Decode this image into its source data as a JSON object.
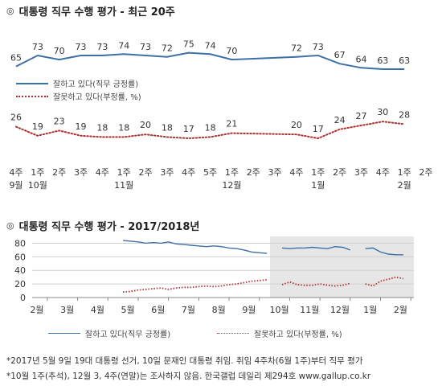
{
  "header1": {
    "icon": "target-icon",
    "title": "대통령 직무 수행 평가 - 최근 20주"
  },
  "header2": {
    "icon": "target-icon",
    "title": "대통령 직무 수행 평가 - 2017/2018년"
  },
  "legend_top": {
    "approve": "잘하고 있다(직무 긍정률)",
    "disapprove": "잘못하고 있다(부정률, %)"
  },
  "legend_bottom": {
    "approve": "잘하고 있다(직무 긍정률)",
    "disapprove": "잘못하고 있다(부정률, %)"
  },
  "footnotes": [
    "*2017년 5월 9일 19대 대통령 선거, 10일 문재인 대통령 취임. 취임 4주차(6월 1주)부터 직무 평가",
    "*10월 1주(추석), 12월 3, 4주(연말)는 조사하지 않음. 한국갤럽 데일리 제294호 www.gallup.co.kr"
  ],
  "colors": {
    "approve": "#3d6fa8",
    "disapprove": "#b03030",
    "shade": "#e6e6e6"
  },
  "chart_data": [
    {
      "type": "line",
      "title": "대통령 직무 수행 평가 - 최근 20주",
      "x": [
        "4주",
        "1주",
        "2주",
        "3주",
        "4주",
        "1주",
        "2주",
        "3주",
        "4주",
        "5주",
        "1주",
        "2주",
        "3주",
        "4주",
        "1주",
        "2주",
        "3주",
        "4주",
        "1주",
        "2주"
      ],
      "x_month_labels": [
        "9월",
        "10월",
        "",
        "",
        "",
        "11월",
        "",
        "",
        "",
        "",
        "12월",
        "",
        "",
        "",
        "1월",
        "",
        "",
        "",
        "2월",
        ""
      ],
      "series": [
        {
          "name": "잘하고 있다(직무 긍정률)",
          "values": [
            65,
            73,
            70,
            73,
            73,
            74,
            73,
            72,
            75,
            74,
            70,
            null,
            null,
            72,
            73,
            67,
            64,
            63,
            63,
            null
          ],
          "labels": [
            "65",
            "73",
            "70",
            "73",
            "73",
            "74",
            "73",
            "72",
            "75",
            "74",
            "70",
            "",
            "",
            "72",
            "73",
            "67",
            "64",
            "63",
            "63",
            ""
          ]
        },
        {
          "name": "잘못하고 있다(부정률, %)",
          "values": [
            26,
            19,
            23,
            19,
            18,
            18,
            20,
            18,
            17,
            18,
            21,
            null,
            null,
            20,
            17,
            24,
            27,
            30,
            28,
            null
          ],
          "labels": [
            "26",
            "19",
            "23",
            "19",
            "18",
            "18",
            "20",
            "18",
            "17",
            "18",
            "21",
            "",
            "",
            "20",
            "17",
            "24",
            "27",
            "30",
            "28",
            ""
          ]
        }
      ],
      "legend_position": "right"
    },
    {
      "type": "line",
      "title": "대통령 직무 수행 평가 - 2017/2018년",
      "x_months": [
        "2월",
        "3월",
        "4월",
        "5월",
        "6월",
        "7월",
        "8월",
        "9월",
        "10월",
        "11월",
        "12월",
        "1월",
        "2월"
      ],
      "ylim": [
        0,
        90
      ],
      "yticks": [
        "0",
        "20",
        "40",
        "60",
        "80"
      ],
      "grid": true,
      "shaded_range": [
        "10월",
        "2월"
      ],
      "approve_points": [
        [
          5.0,
          84
        ],
        [
          5.25,
          83
        ],
        [
          5.5,
          82
        ],
        [
          5.75,
          80
        ],
        [
          6.0,
          81
        ],
        [
          6.25,
          80
        ],
        [
          6.5,
          82
        ],
        [
          6.75,
          79
        ],
        [
          7.0,
          78
        ],
        [
          7.25,
          77
        ],
        [
          7.5,
          76
        ],
        [
          7.75,
          75
        ],
        [
          8.0,
          76
        ],
        [
          8.25,
          75
        ],
        [
          8.5,
          73
        ],
        [
          8.75,
          72
        ],
        [
          9.0,
          70
        ],
        [
          9.25,
          67
        ],
        [
          9.5,
          66
        ],
        [
          9.75,
          65
        ],
        [
          10.25,
          73
        ],
        [
          10.5,
          72
        ],
        [
          10.75,
          73
        ],
        [
          11.0,
          73
        ],
        [
          11.25,
          74
        ],
        [
          11.5,
          73
        ],
        [
          11.75,
          72
        ],
        [
          12.0,
          75
        ],
        [
          12.25,
          74
        ],
        [
          12.5,
          70
        ],
        [
          13.0,
          72
        ],
        [
          13.25,
          73
        ],
        [
          13.5,
          67
        ],
        [
          13.75,
          64
        ],
        [
          14.0,
          63
        ],
        [
          14.25,
          63
        ]
      ],
      "disapprove_points": [
        [
          5.0,
          8
        ],
        [
          5.25,
          9
        ],
        [
          5.5,
          11
        ],
        [
          5.75,
          12
        ],
        [
          6.0,
          13
        ],
        [
          6.25,
          14
        ],
        [
          6.5,
          12
        ],
        [
          6.75,
          14
        ],
        [
          7.0,
          15
        ],
        [
          7.25,
          15
        ],
        [
          7.5,
          16
        ],
        [
          7.75,
          17
        ],
        [
          8.0,
          16
        ],
        [
          8.25,
          17
        ],
        [
          8.5,
          19
        ],
        [
          8.75,
          20
        ],
        [
          9.0,
          22
        ],
        [
          9.25,
          24
        ],
        [
          9.5,
          25
        ],
        [
          9.75,
          26
        ],
        [
          10.25,
          19
        ],
        [
          10.5,
          23
        ],
        [
          10.75,
          19
        ],
        [
          11.0,
          18
        ],
        [
          11.25,
          18
        ],
        [
          11.5,
          20
        ],
        [
          11.75,
          18
        ],
        [
          12.0,
          17
        ],
        [
          12.25,
          18
        ],
        [
          12.5,
          21
        ],
        [
          13.0,
          20
        ],
        [
          13.25,
          17
        ],
        [
          13.5,
          24
        ],
        [
          13.75,
          27
        ],
        [
          14.0,
          30
        ],
        [
          14.25,
          28
        ]
      ]
    }
  ]
}
